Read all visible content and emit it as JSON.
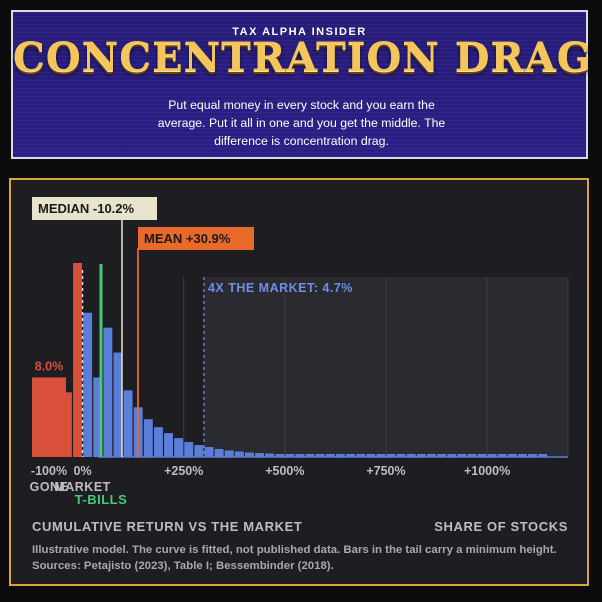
{
  "header": {
    "brand": "TAX ALPHA INSIDER",
    "title": "CONCENTRATION DRAG",
    "subtitle": "Put equal money in every stock and you earn the average. Put it all in one and you get the middle. The difference is concentration drag."
  },
  "chart_data": {
    "type": "bar",
    "xlabel": "CUMULATIVE RETURN VS THE MARKET",
    "ylabel": "SHARE OF STOCKS",
    "xlim": [
      -130,
      1200
    ],
    "ylim": [
      0,
      25
    ],
    "x_ticks": [
      {
        "value": -100,
        "label": "-100%",
        "sublabel": "GONE"
      },
      {
        "value": 0,
        "label": "0%",
        "sublabel": "MARKET"
      },
      {
        "value": 250,
        "label": "+250%"
      },
      {
        "value": 500,
        "label": "+500%"
      },
      {
        "value": 750,
        "label": "+750%"
      },
      {
        "value": 1000,
        "label": "+1000%"
      }
    ],
    "gone_bar": {
      "value": 8.0,
      "label": "8.0%",
      "color": "#d9503a"
    },
    "bins": {
      "start": -100,
      "width": 25,
      "values": [
        0,
        0,
        6.5,
        19.5,
        14.5,
        8.0,
        13.0,
        10.5,
        6.7,
        5.0,
        3.8,
        3.0,
        2.4,
        1.9,
        1.5,
        1.2,
        1.0,
        0.8,
        0.65,
        0.55,
        0.45,
        0.4,
        0.35,
        0.3,
        0.3,
        0.3,
        0.3,
        0.3,
        0.3,
        0.3,
        0.3,
        0.3,
        0.3,
        0.3,
        0.3,
        0.3,
        0.3,
        0.3,
        0.3,
        0.3,
        0.3,
        0.3,
        0.3,
        0.3,
        0.3,
        0.3,
        0.3,
        0.3,
        0.3,
        0.3
      ]
    },
    "below_market_color": "#d9503a",
    "above_market_color": "#5b7fd8",
    "markers": {
      "tbills": {
        "value": -7,
        "label": "T-BILLS",
        "color": "#47c97a"
      },
      "median": {
        "value": -10.2,
        "label": "MEDIAN -10.2%",
        "color": "#e8e3cc"
      },
      "mean": {
        "value": 30.9,
        "label": "MEAN +30.9%",
        "color": "#e86a2a"
      },
      "market": {
        "value": 0
      }
    },
    "tail_region": {
      "from": 300,
      "label": "4X THE MARKET: 4.7%",
      "color": "#6f8ee6"
    },
    "grid": true
  },
  "notes": {
    "line1": "Illustrative model. The curve is fitted, not published data. Bars in the tail carry a minimum height.",
    "line2": "Sources: Petajisto (2023), Table I; Bessembinder (2018)."
  }
}
